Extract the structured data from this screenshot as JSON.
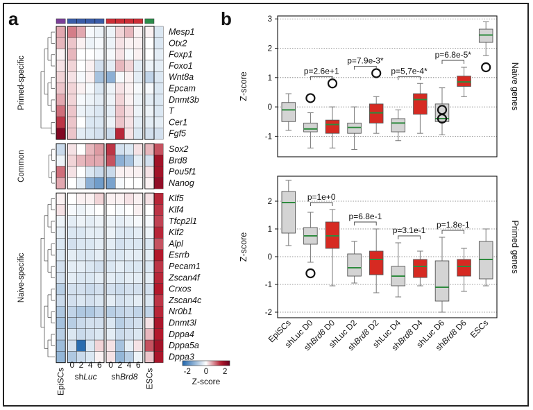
{
  "panel_a": {
    "letter": "a",
    "group_labels": [
      "Primed-specific",
      "Common",
      "Naive-specific"
    ],
    "genes": [
      "Mesp1",
      "Otx2",
      "Foxp1",
      "Foxo1",
      "Wnt8a",
      "Epcam",
      "Dnmt3b",
      "T",
      "Cer1",
      "Fgf5",
      "Sox2",
      "Brd8",
      "Pou5f1",
      "Nanog",
      "Klf5",
      "Klf4",
      "Tfcp2l1",
      "Klf2",
      "Alpl",
      "Esrrb",
      "Pecam1",
      "Zscan4f",
      "Crxos",
      "Zscan4c",
      "Nr0b1",
      "Dnmt3l",
      "Dppa4",
      "Dppa5a",
      "Dppa3"
    ],
    "columns": {
      "episcs": "EpiSCs",
      "sh_prefix": "sh",
      "luc": "Luc",
      "brd8": "Brd8",
      "days": [
        "0",
        "2",
        "4",
        "6"
      ],
      "escs": "ESCs"
    },
    "column_bar_colors": [
      "#7b3f98",
      "#3a5ca8",
      "#cc2d35",
      "#2b8c4a"
    ],
    "colorbar": {
      "ticks": [
        "-2",
        "0",
        "2"
      ],
      "label": "Z-score",
      "colors": [
        "#2166ac",
        "#ffffff",
        "#b2182b",
        "#67001f"
      ]
    },
    "heatmap": [
      [
        0.6,
        0.9,
        0.6,
        -0.1,
        -0.2,
        -0.2,
        0.3,
        0.5,
        0.1,
        0.1,
        -0.4
      ],
      [
        0.5,
        0.4,
        0.1,
        -0.2,
        -0.1,
        -0.2,
        0.2,
        0.1,
        0.1,
        0.0,
        -0.4
      ],
      [
        0.1,
        0.5,
        0.0,
        0.0,
        -0.1,
        -0.1,
        0.2,
        -0.1,
        0.1,
        0.0,
        -0.3
      ],
      [
        0.2,
        0.3,
        0.0,
        0.1,
        -0.5,
        -0.3,
        0.5,
        0.3,
        -0.3,
        -0.2,
        -0.3
      ],
      [
        0.3,
        0.2,
        -0.1,
        0.1,
        -1.0,
        -1.3,
        -0.1,
        0.1,
        -0.3,
        -0.7,
        -0.4
      ],
      [
        0.4,
        0.3,
        0.1,
        -0.1,
        -0.4,
        -0.2,
        0.2,
        0.1,
        -0.1,
        -0.1,
        -0.4
      ],
      [
        0.6,
        0.3,
        -0.1,
        -0.2,
        -0.3,
        -0.2,
        0.3,
        0.1,
        -0.2,
        -0.3,
        -0.4
      ],
      [
        1.0,
        0.4,
        -0.2,
        -0.3,
        -0.4,
        -0.3,
        0.4,
        0.2,
        -0.2,
        -0.2,
        -0.4
      ],
      [
        1.4,
        0.4,
        0.0,
        -0.4,
        -0.4,
        -0.2,
        0.4,
        0.2,
        -0.3,
        -0.3,
        -0.3
      ],
      [
        2.2,
        0.4,
        -0.3,
        -0.4,
        -0.5,
        -0.6,
        1.5,
        0.2,
        -0.4,
        -0.5,
        -0.5
      ],
      [
        -0.6,
        0.2,
        0.0,
        0.5,
        0.7,
        1.4,
        -0.5,
        -0.4,
        0.2,
        0.5,
        1.2
      ],
      [
        -0.2,
        0.3,
        0.5,
        0.6,
        0.6,
        1.2,
        -1.3,
        -1.0,
        -0.3,
        -0.5,
        1.8
      ],
      [
        1.0,
        0.2,
        0.0,
        -0.4,
        -0.6,
        -0.6,
        0.1,
        0.1,
        0.1,
        0.2,
        1.8
      ],
      [
        0.6,
        0.0,
        -0.3,
        -1.3,
        -1.6,
        -1.5,
        -0.1,
        0.0,
        0.0,
        0.1,
        2.0
      ],
      [
        0.1,
        0.0,
        0.1,
        0.1,
        0.3,
        0.1,
        0.1,
        0.2,
        0.1,
        0.2,
        1.5
      ],
      [
        0.2,
        -0.1,
        -0.2,
        -0.1,
        0.0,
        0.0,
        -0.1,
        0.0,
        0.1,
        0.0,
        1.4
      ],
      [
        -0.2,
        -0.3,
        -0.2,
        -0.3,
        -0.2,
        -0.2,
        -0.3,
        -0.2,
        -0.1,
        -0.1,
        1.3
      ],
      [
        -0.3,
        -0.4,
        -0.4,
        -0.3,
        -0.3,
        -0.2,
        -0.4,
        -0.4,
        -0.3,
        -0.2,
        1.5
      ],
      [
        -0.4,
        -0.5,
        -0.4,
        -0.4,
        -0.3,
        -0.3,
        -0.5,
        -0.4,
        -0.4,
        -0.4,
        1.2
      ],
      [
        -0.4,
        -0.3,
        -0.4,
        -0.4,
        -0.3,
        -0.4,
        -0.4,
        -0.3,
        -0.3,
        -0.3,
        1.6
      ],
      [
        -0.5,
        -0.3,
        -0.3,
        -0.4,
        -0.5,
        -0.4,
        -0.3,
        -0.4,
        -0.4,
        -0.4,
        1.4
      ],
      [
        -0.5,
        -0.3,
        -0.4,
        -0.4,
        -0.3,
        -0.3,
        -0.4,
        -0.3,
        -0.3,
        -0.3,
        1.5
      ],
      [
        -0.8,
        -0.5,
        -0.5,
        -0.6,
        -0.5,
        -0.5,
        -0.6,
        -0.5,
        -0.5,
        -0.5,
        1.6
      ],
      [
        -0.6,
        -0.5,
        -0.4,
        -0.5,
        -0.4,
        -0.3,
        -0.5,
        -0.4,
        -0.3,
        -0.4,
        1.4
      ],
      [
        -0.9,
        -0.7,
        -0.9,
        -0.9,
        -0.7,
        -0.8,
        -0.7,
        -0.6,
        -0.7,
        -0.7,
        1.5
      ],
      [
        -1.0,
        -0.8,
        -0.6,
        -0.5,
        -0.5,
        -0.4,
        -0.8,
        -0.6,
        -0.5,
        0.2,
        1.7
      ],
      [
        -0.8,
        -0.4,
        -0.6,
        -0.5,
        -0.4,
        -0.3,
        -0.6,
        -0.5,
        -0.4,
        0.5,
        1.6
      ],
      [
        -1.1,
        -0.5,
        -2.4,
        -0.4,
        0.3,
        0.2,
        -1.0,
        -0.3,
        0.2,
        1.2,
        1.8
      ],
      [
        -1.2,
        -0.9,
        -0.6,
        -0.4,
        0.1,
        0.2,
        -1.2,
        -0.8,
        -0.2,
        0.4,
        1.7
      ]
    ]
  },
  "panel_b": {
    "letter": "b",
    "x_labels": [
      {
        "pre": "EpiSCs",
        "it": "",
        "post": ""
      },
      {
        "pre": "shLuc D0",
        "it": "",
        "post": ""
      },
      {
        "pre": "sh",
        "it": "Brd8",
        "post": " D0"
      },
      {
        "pre": "shLuc D2",
        "it": "",
        "post": ""
      },
      {
        "pre": "sh",
        "it": "Brd8",
        "post": " D2"
      },
      {
        "pre": "shLuc D4",
        "it": "",
        "post": ""
      },
      {
        "pre": "sh",
        "it": "Brd8",
        "post": " D4"
      },
      {
        "pre": "shLuc D6",
        "it": "",
        "post": ""
      },
      {
        "pre": "sh",
        "it": "Brd8",
        "post": " D6"
      },
      {
        "pre": "ESCs",
        "it": "",
        "post": ""
      }
    ]
  },
  "colors": {
    "gray_box": "#d4d4d4",
    "red_box": "#d62a22",
    "median": "#2e8b3e"
  },
  "chart_data": [
    {
      "type": "box",
      "title": "Naive genes",
      "ylabel": "Z-score",
      "ylim": [
        -1.7,
        3.1
      ],
      "yticks": [
        -1,
        0,
        1,
        2,
        3
      ],
      "grid": "horizontal dotted",
      "categories": [
        "EpiSCs",
        "shLuc D0",
        "shBrd8 D0",
        "shLuc D2",
        "shBrd8 D2",
        "shLuc D4",
        "shBrd8 D4",
        "shLuc D6",
        "shBrd8 D6",
        "ESCs"
      ],
      "box_colors": [
        "gray",
        "gray",
        "red",
        "gray",
        "red",
        "gray",
        "red",
        "gray",
        "red",
        "gray"
      ],
      "boxes": [
        {
          "whisker_low": -0.8,
          "q1": -0.5,
          "median": -0.1,
          "q3": 0.15,
          "whisker_high": 0.45,
          "outliers": []
        },
        {
          "whisker_low": -1.4,
          "q1": -0.85,
          "median": -0.75,
          "q3": -0.55,
          "whisker_high": -0.2,
          "outliers": [
            0.3
          ]
        },
        {
          "whisker_low": -1.4,
          "q1": -0.9,
          "median": -0.6,
          "q3": -0.45,
          "whisker_high": 0.0,
          "outliers": [
            0.8
          ]
        },
        {
          "whisker_low": -1.45,
          "q1": -0.9,
          "median": -0.7,
          "q3": -0.55,
          "whisker_high": 0.0,
          "outliers": []
        },
        {
          "whisker_low": -0.9,
          "q1": -0.55,
          "median": -0.2,
          "q3": 0.1,
          "whisker_high": 0.35,
          "outliers": [
            1.15
          ]
        },
        {
          "whisker_low": -1.15,
          "q1": -0.85,
          "median": -0.55,
          "q3": -0.4,
          "whisker_high": -0.1,
          "outliers": []
        },
        {
          "whisker_low": -0.9,
          "q1": -0.25,
          "median": 0.25,
          "q3": 0.45,
          "whisker_high": 0.8,
          "outliers": []
        },
        {
          "whisker_low": -0.95,
          "q1": -0.5,
          "median": -0.4,
          "q3": 0.1,
          "whisker_high": 0.65,
          "outliers": [
            -0.1,
            -0.4
          ]
        },
        {
          "whisker_low": 0.35,
          "q1": 0.7,
          "median": 0.85,
          "q3": 1.05,
          "whisker_high": 1.35,
          "outliers": []
        },
        {
          "whisker_low": 1.75,
          "q1": 2.2,
          "median": 2.45,
          "q3": 2.65,
          "whisker_high": 2.9,
          "outliers": [
            1.35
          ]
        }
      ],
      "annotations": [
        {
          "between": [
            1,
            2
          ],
          "text": "p=2.6e+1"
        },
        {
          "between": [
            3,
            4
          ],
          "text": "p=7.9e-3*"
        },
        {
          "between": [
            5,
            6
          ],
          "text": "p=5,7e-4*"
        },
        {
          "between": [
            7,
            8
          ],
          "text": "p=6.8e-5*"
        }
      ]
    },
    {
      "type": "box",
      "title": "Primed genes",
      "ylabel": "Z-score",
      "ylim": [
        -2.2,
        2.9
      ],
      "yticks": [
        -2,
        -1,
        0,
        1,
        2
      ],
      "grid": "horizontal dotted",
      "categories": [
        "EpiSCs",
        "shLuc D0",
        "shBrd8 D0",
        "shLuc D2",
        "shBrd8 D2",
        "shLuc D4",
        "shBrd8 D4",
        "shLuc D6",
        "shBrd8 D6",
        "ESCs"
      ],
      "box_colors": [
        "gray",
        "gray",
        "red",
        "gray",
        "red",
        "gray",
        "red",
        "gray",
        "red",
        "gray"
      ],
      "boxes": [
        {
          "whisker_low": 0.4,
          "q1": 0.85,
          "median": 1.95,
          "q3": 2.35,
          "whisker_high": 2.75,
          "outliers": []
        },
        {
          "whisker_low": -0.2,
          "q1": 0.45,
          "median": 0.75,
          "q3": 1.05,
          "whisker_high": 1.6,
          "outliers": [
            -0.6
          ]
        },
        {
          "whisker_low": -1.05,
          "q1": 0.3,
          "median": 0.75,
          "q3": 1.25,
          "whisker_high": 1.7,
          "outliers": []
        },
        {
          "whisker_low": -0.95,
          "q1": -0.7,
          "median": -0.4,
          "q3": 0.1,
          "whisker_high": 0.55,
          "outliers": []
        },
        {
          "whisker_low": -1.3,
          "q1": -0.65,
          "median": -0.1,
          "q3": 0.2,
          "whisker_high": 1.0,
          "outliers": []
        },
        {
          "whisker_low": -1.45,
          "q1": -1.05,
          "median": -0.7,
          "q3": -0.35,
          "whisker_high": 0.5,
          "outliers": []
        },
        {
          "whisker_low": -1.05,
          "q1": -0.75,
          "median": -0.35,
          "q3": -0.1,
          "whisker_high": 0.2,
          "outliers": []
        },
        {
          "whisker_low": -2.0,
          "q1": -1.6,
          "median": -1.1,
          "q3": -0.15,
          "whisker_high": 0.7,
          "outliers": []
        },
        {
          "whisker_low": -1.25,
          "q1": -0.7,
          "median": -0.35,
          "q3": -0.1,
          "whisker_high": 0.3,
          "outliers": []
        },
        {
          "whisker_low": -1.05,
          "q1": -0.8,
          "median": -0.1,
          "q3": 0.55,
          "whisker_high": 1.0,
          "outliers": []
        }
      ],
      "annotations": [
        {
          "between": [
            1,
            2
          ],
          "text": "p=1e+0"
        },
        {
          "between": [
            3,
            4
          ],
          "text": "p=6.8e-1"
        },
        {
          "between": [
            5,
            6
          ],
          "text": "p=3.1e-1"
        },
        {
          "between": [
            7,
            8
          ],
          "text": "p=1.8e-1"
        }
      ]
    }
  ]
}
